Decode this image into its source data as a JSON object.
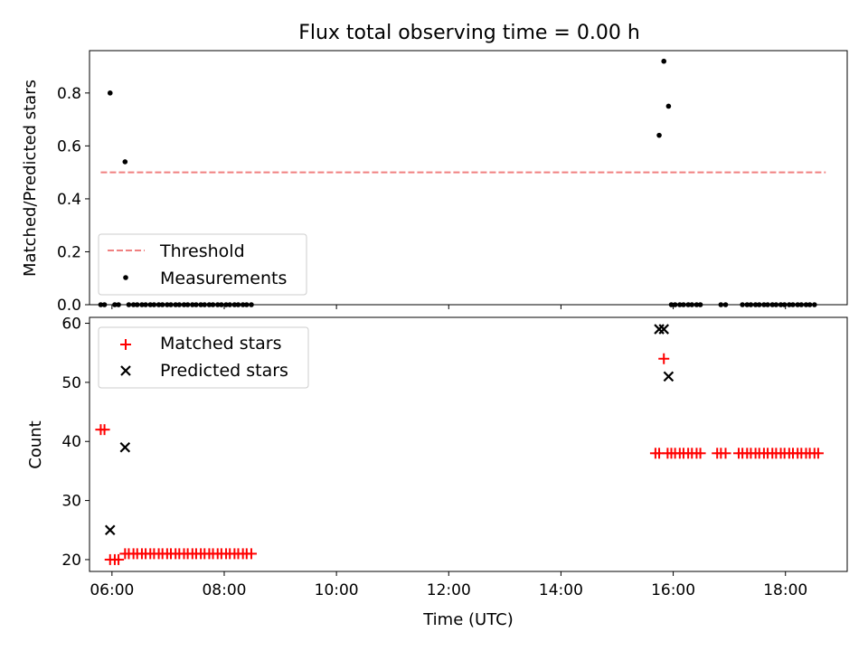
{
  "chart_data": [
    {
      "type": "scatter",
      "title": "Flux total observing time = 0.00 h",
      "xlabel": "",
      "ylabel": "Matched/Predicted stars",
      "xlim": [
        "05:36",
        "19:06"
      ],
      "ylim": [
        0,
        0.96
      ],
      "yticks": [
        0.0,
        0.2,
        0.4,
        0.6,
        0.8
      ],
      "ytick_labels": [
        "0.0",
        "0.2",
        "0.4",
        "0.6",
        "0.8"
      ],
      "threshold": {
        "name": "Threshold",
        "value": 0.5,
        "x_start": "05:48",
        "x_end": "18:43",
        "color": "#f08080"
      },
      "series": [
        {
          "name": "Measurements",
          "marker": "dot",
          "color": "#000000",
          "points": [
            [
              "05:48",
              0
            ],
            [
              "05:52",
              0
            ],
            [
              "05:58",
              0.8
            ],
            [
              "06:03",
              0
            ],
            [
              "06:07",
              0
            ],
            [
              "06:14",
              0.54
            ],
            [
              "06:18",
              0
            ],
            [
              "06:23",
              0
            ],
            [
              "06:27",
              0
            ],
            [
              "06:32",
              0
            ],
            [
              "06:36",
              0
            ],
            [
              "06:41",
              0
            ],
            [
              "06:45",
              0
            ],
            [
              "06:50",
              0
            ],
            [
              "06:54",
              0
            ],
            [
              "06:59",
              0
            ],
            [
              "07:03",
              0
            ],
            [
              "07:08",
              0
            ],
            [
              "07:12",
              0
            ],
            [
              "07:17",
              0
            ],
            [
              "07:21",
              0
            ],
            [
              "07:26",
              0
            ],
            [
              "07:30",
              0
            ],
            [
              "07:35",
              0
            ],
            [
              "07:39",
              0
            ],
            [
              "07:44",
              0
            ],
            [
              "07:48",
              0
            ],
            [
              "07:53",
              0
            ],
            [
              "07:57",
              0
            ],
            [
              "08:02",
              0
            ],
            [
              "08:06",
              0
            ],
            [
              "08:11",
              0
            ],
            [
              "08:15",
              0
            ],
            [
              "08:20",
              0
            ],
            [
              "08:24",
              0
            ],
            [
              "08:29",
              0
            ],
            [
              "15:45",
              0.64
            ],
            [
              "15:50",
              0.92
            ],
            [
              "15:55",
              0.75
            ],
            [
              "15:58",
              0
            ],
            [
              "16:02",
              0
            ],
            [
              "16:07",
              0
            ],
            [
              "16:11",
              0
            ],
            [
              "16:16",
              0
            ],
            [
              "16:20",
              0
            ],
            [
              "16:25",
              0
            ],
            [
              "16:29",
              0
            ],
            [
              "16:51",
              0
            ],
            [
              "16:56",
              0
            ],
            [
              "17:14",
              0
            ],
            [
              "17:19",
              0
            ],
            [
              "17:23",
              0
            ],
            [
              "17:28",
              0
            ],
            [
              "17:32",
              0
            ],
            [
              "17:37",
              0
            ],
            [
              "17:41",
              0
            ],
            [
              "17:46",
              0
            ],
            [
              "17:50",
              0
            ],
            [
              "17:55",
              0
            ],
            [
              "17:59",
              0
            ],
            [
              "18:04",
              0
            ],
            [
              "18:08",
              0
            ],
            [
              "18:13",
              0
            ],
            [
              "18:17",
              0
            ],
            [
              "18:22",
              0
            ],
            [
              "18:26",
              0
            ],
            [
              "18:31",
              0
            ]
          ]
        }
      ],
      "legend": {
        "placement": "lower-left",
        "entries": [
          "Threshold",
          "Measurements"
        ]
      }
    },
    {
      "type": "scatter",
      "title": "",
      "xlabel": "Time (UTC)",
      "ylabel": "Count",
      "xlim": [
        "05:36",
        "19:06"
      ],
      "ylim": [
        18,
        61
      ],
      "yticks": [
        20,
        30,
        40,
        50,
        60
      ],
      "ytick_labels": [
        "20",
        "30",
        "40",
        "50",
        "60"
      ],
      "xticks": [
        "06:00",
        "08:00",
        "10:00",
        "12:00",
        "14:00",
        "16:00",
        "18:00"
      ],
      "xtick_labels": [
        "06:00",
        "08:00",
        "10:00",
        "12:00",
        "14:00",
        "16:00",
        "18:00"
      ],
      "series": [
        {
          "name": "Matched stars",
          "marker": "plus",
          "color": "#ff0000",
          "points": [
            [
              "05:48",
              42
            ],
            [
              "05:52",
              42
            ],
            [
              "05:58",
              20
            ],
            [
              "06:03",
              20
            ],
            [
              "06:07",
              20
            ],
            [
              "06:14",
              21
            ],
            [
              "06:18",
              21
            ],
            [
              "06:23",
              21
            ],
            [
              "06:27",
              21
            ],
            [
              "06:32",
              21
            ],
            [
              "06:36",
              21
            ],
            [
              "06:41",
              21
            ],
            [
              "06:45",
              21
            ],
            [
              "06:50",
              21
            ],
            [
              "06:54",
              21
            ],
            [
              "06:59",
              21
            ],
            [
              "07:03",
              21
            ],
            [
              "07:08",
              21
            ],
            [
              "07:12",
              21
            ],
            [
              "07:17",
              21
            ],
            [
              "07:21",
              21
            ],
            [
              "07:26",
              21
            ],
            [
              "07:30",
              21
            ],
            [
              "07:35",
              21
            ],
            [
              "07:39",
              21
            ],
            [
              "07:44",
              21
            ],
            [
              "07:48",
              21
            ],
            [
              "07:53",
              21
            ],
            [
              "07:57",
              21
            ],
            [
              "08:02",
              21
            ],
            [
              "08:06",
              21
            ],
            [
              "08:11",
              21
            ],
            [
              "08:15",
              21
            ],
            [
              "08:20",
              21
            ],
            [
              "08:24",
              21
            ],
            [
              "08:29",
              21
            ],
            [
              "15:41",
              38
            ],
            [
              "15:45",
              38
            ],
            [
              "15:50",
              54
            ],
            [
              "15:54",
              38
            ],
            [
              "15:58",
              38
            ],
            [
              "16:02",
              38
            ],
            [
              "16:07",
              38
            ],
            [
              "16:11",
              38
            ],
            [
              "16:16",
              38
            ],
            [
              "16:20",
              38
            ],
            [
              "16:25",
              38
            ],
            [
              "16:29",
              38
            ],
            [
              "16:47",
              38
            ],
            [
              "16:51",
              38
            ],
            [
              "16:56",
              38
            ],
            [
              "17:10",
              38
            ],
            [
              "17:14",
              38
            ],
            [
              "17:19",
              38
            ],
            [
              "17:23",
              38
            ],
            [
              "17:28",
              38
            ],
            [
              "17:32",
              38
            ],
            [
              "17:37",
              38
            ],
            [
              "17:41",
              38
            ],
            [
              "17:46",
              38
            ],
            [
              "17:50",
              38
            ],
            [
              "17:55",
              38
            ],
            [
              "17:59",
              38
            ],
            [
              "18:04",
              38
            ],
            [
              "18:08",
              38
            ],
            [
              "18:13",
              38
            ],
            [
              "18:17",
              38
            ],
            [
              "18:22",
              38
            ],
            [
              "18:26",
              38
            ],
            [
              "18:31",
              38
            ],
            [
              "18:35",
              38
            ]
          ]
        },
        {
          "name": "Predicted stars",
          "marker": "x",
          "color": "#000000",
          "points": [
            [
              "05:58",
              25
            ],
            [
              "06:14",
              39
            ],
            [
              "15:45",
              59
            ],
            [
              "15:50",
              59
            ],
            [
              "15:55",
              51
            ]
          ]
        }
      ],
      "legend": {
        "placement": "upper-left",
        "entries": [
          "Matched stars",
          "Predicted stars"
        ]
      }
    }
  ]
}
